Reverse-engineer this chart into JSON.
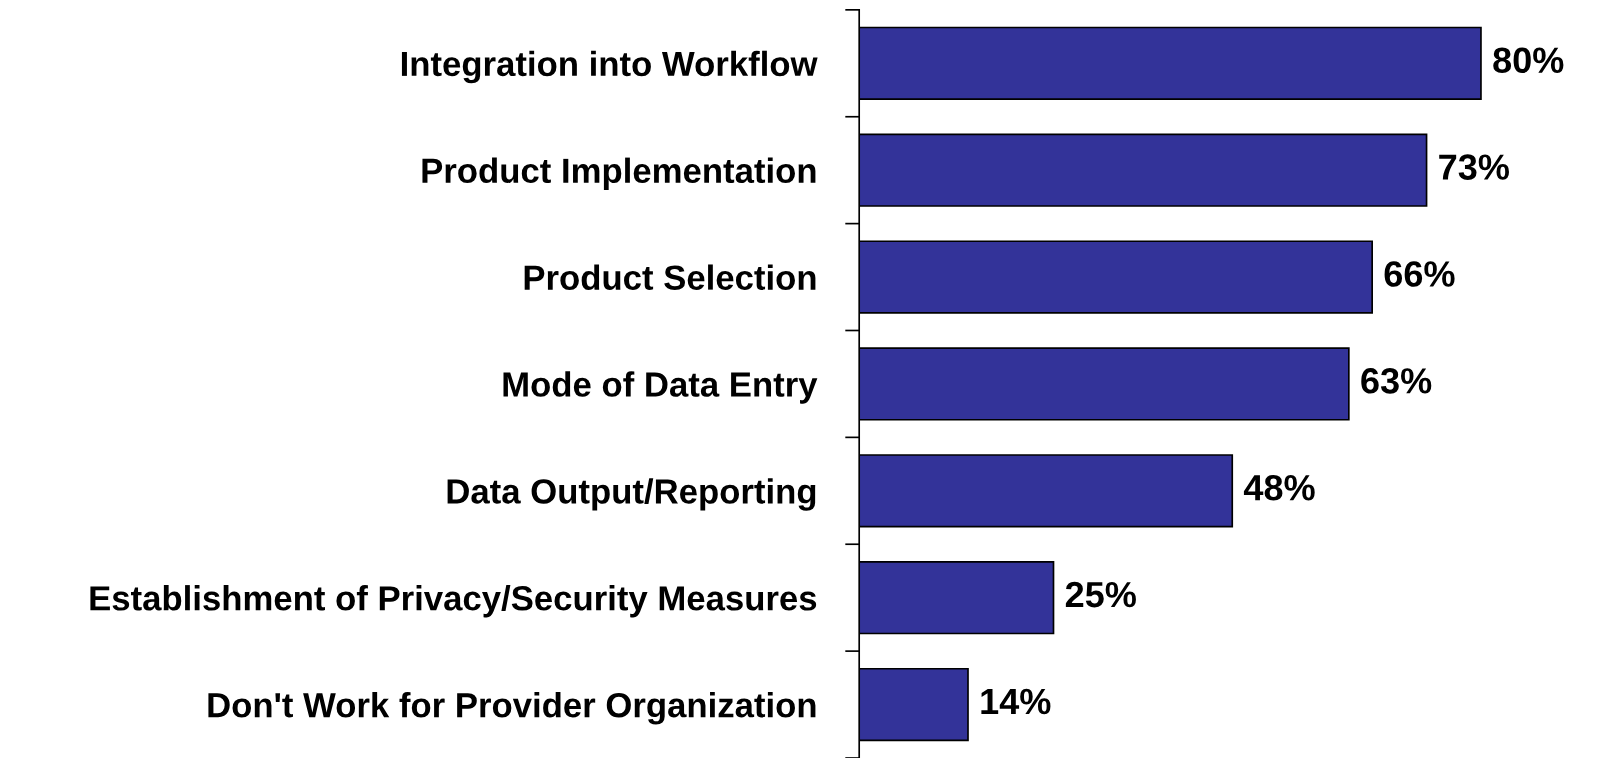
{
  "chart_data": {
    "type": "bar",
    "orientation": "horizontal",
    "categories": [
      "Integration into Workflow",
      "Product Implementation",
      "Product Selection",
      "Mode of Data Entry",
      "Data Output/Reporting",
      "Establishment of Privacy/Security Measures",
      "Don't Work for Provider Organization"
    ],
    "values": [
      80,
      73,
      66,
      63,
      48,
      25,
      14
    ],
    "value_labels": [
      "80%",
      "73%",
      "66%",
      "63%",
      "48%",
      "25%",
      "14%"
    ],
    "color": "#333399",
    "grid": false,
    "legend": false,
    "tick_labels": "y"
  }
}
